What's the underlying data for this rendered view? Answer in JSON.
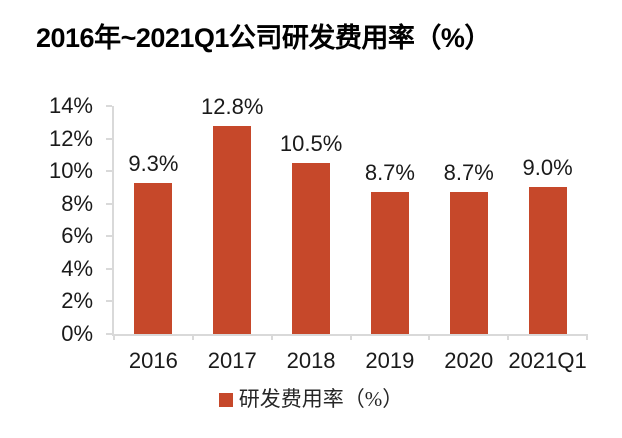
{
  "chart_data": {
    "type": "bar",
    "title": "2016年~2021Q1公司研发费用率（%）",
    "categories": [
      "2016",
      "2017",
      "2018",
      "2019",
      "2020",
      "2021Q1"
    ],
    "values": [
      9.3,
      12.8,
      10.5,
      8.7,
      8.7,
      9.0
    ],
    "value_labels": [
      "9.3%",
      "12.8%",
      "10.5%",
      "8.7%",
      "8.7%",
      "9.0%"
    ],
    "xlabel": "",
    "ylabel": "",
    "ylim": [
      0,
      14
    ],
    "ytick_step": 2,
    "ytick_labels": [
      "0%",
      "2%",
      "4%",
      "6%",
      "8%",
      "10%",
      "12%",
      "14%"
    ],
    "grid": false,
    "legend_position": "bottom",
    "legend": [
      {
        "label": "研发费用率（%）",
        "color": "#C6482A"
      }
    ],
    "bar_color": "#C6482A",
    "axis_color": "#D9D9D9",
    "text_color": "#1A1A1A"
  }
}
